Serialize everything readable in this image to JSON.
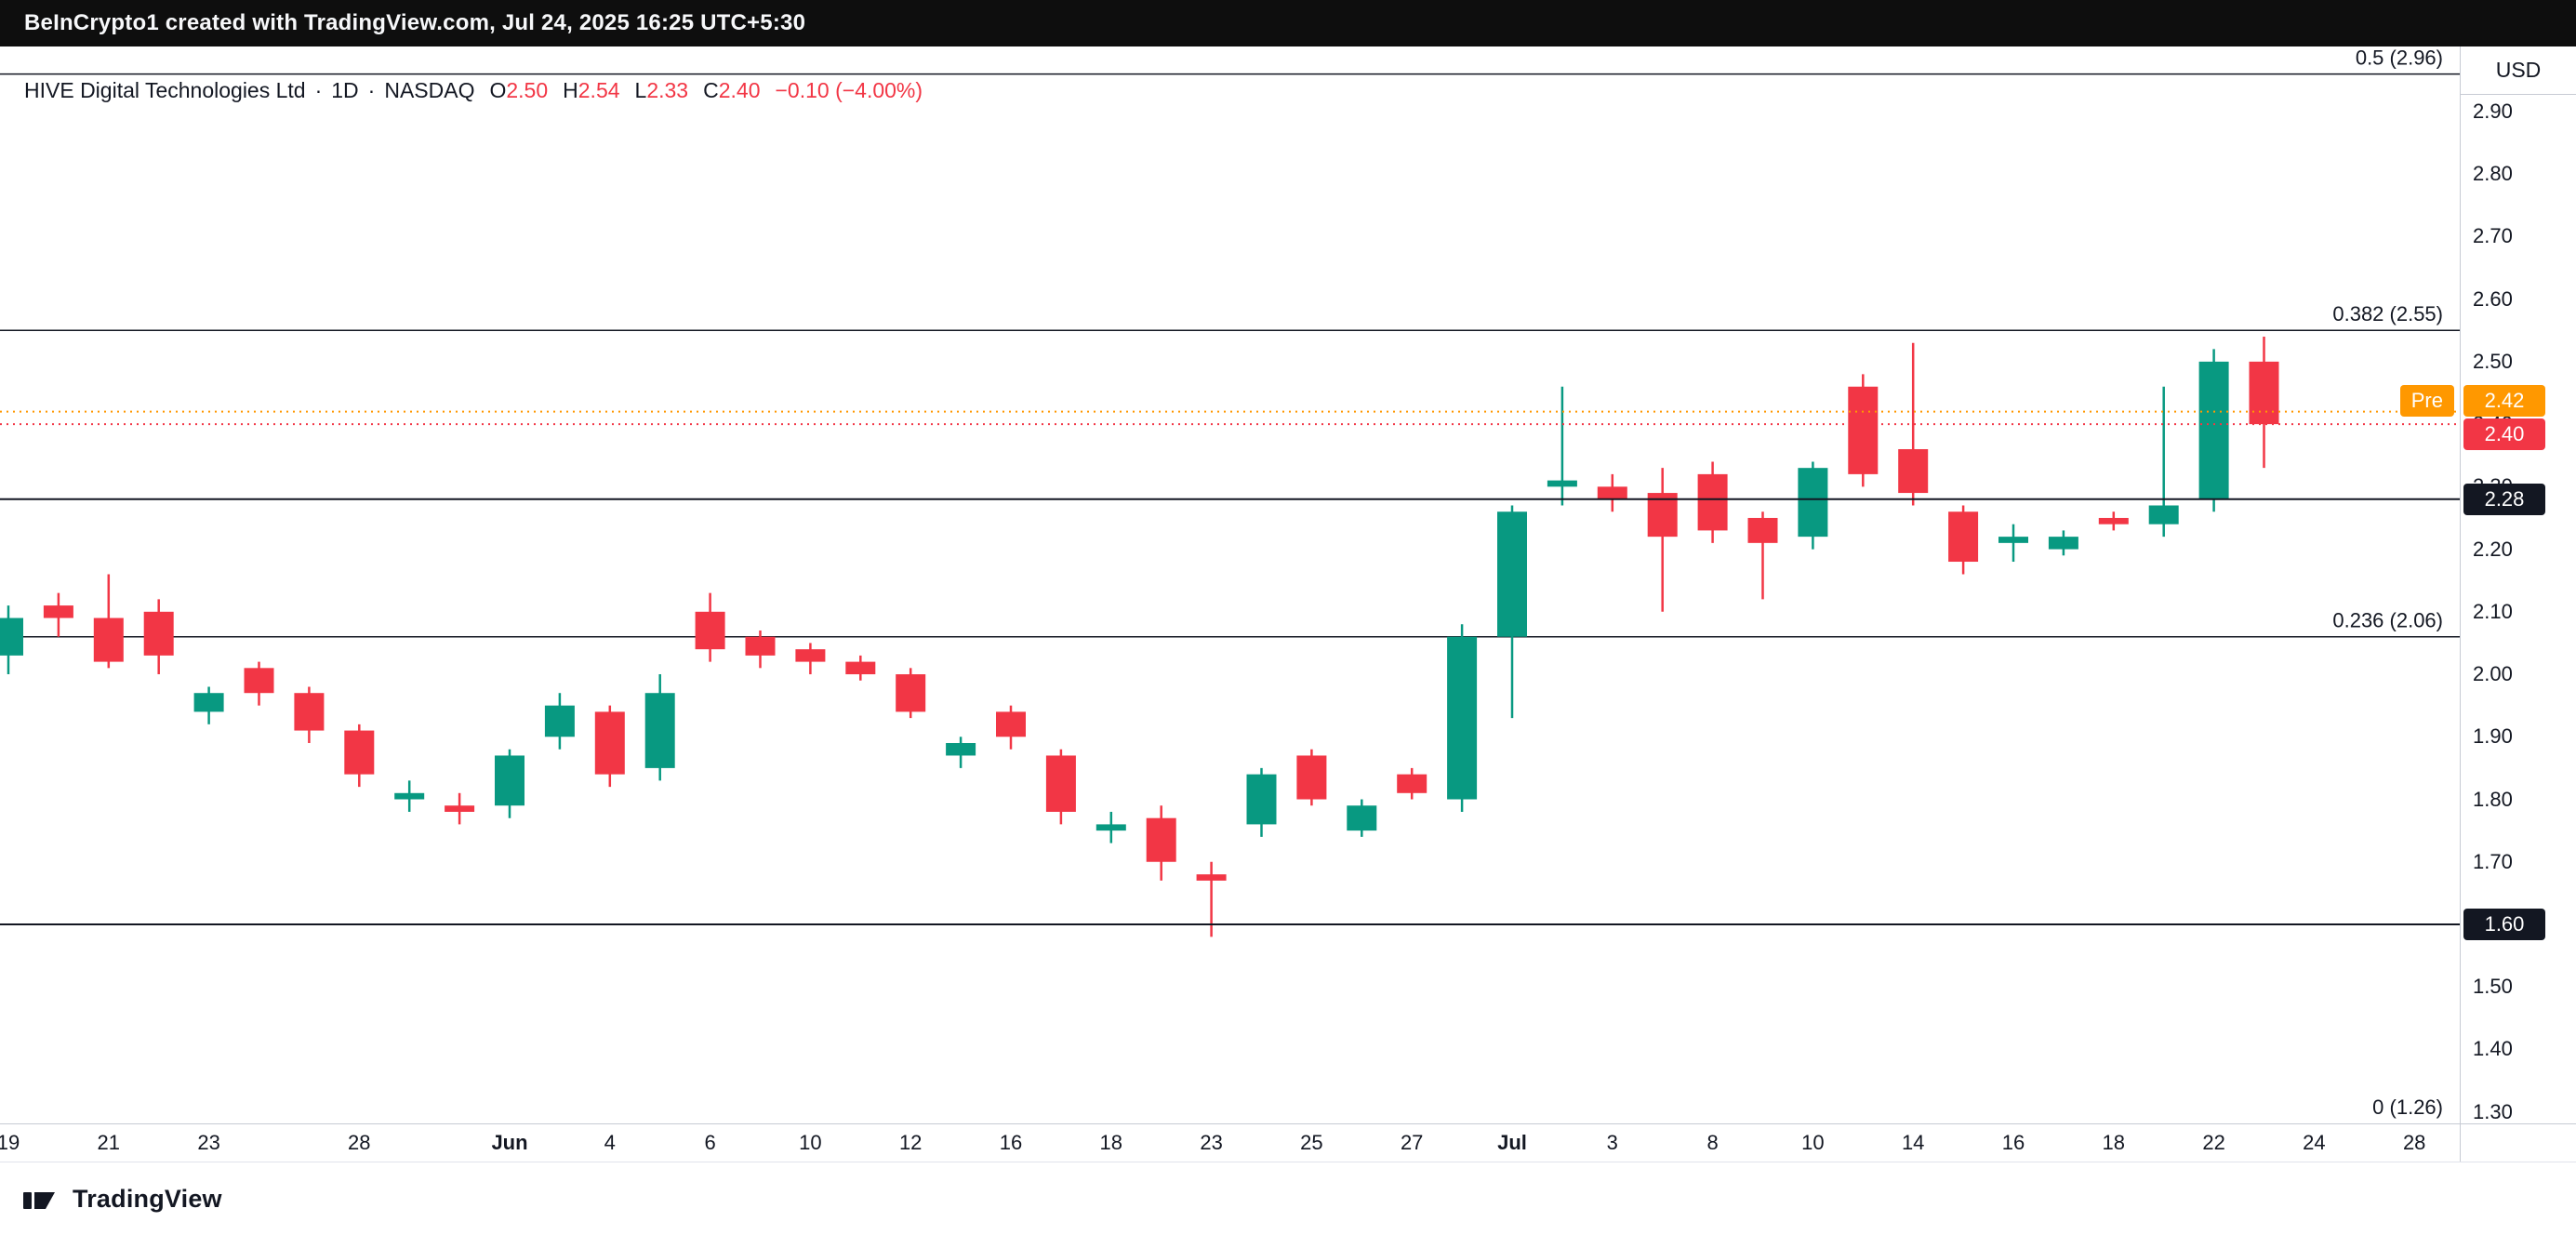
{
  "topbar": {
    "attribution": "BeInCrypto1 created with TradingView.com, Jul 24, 2025 16:25 UTC+5:30"
  },
  "legend": {
    "symbol": "HIVE Digital Technologies Ltd",
    "separator": "·",
    "interval": "1D",
    "exchange": "NASDAQ",
    "ohlc": [
      {
        "label": "O",
        "value": "2.50"
      },
      {
        "label": "H",
        "value": "2.54"
      },
      {
        "label": "L",
        "value": "2.33"
      },
      {
        "label": "C",
        "value": "2.40"
      }
    ],
    "change": "−0.10 (−4.00%)"
  },
  "price_axis": {
    "currency": "USD",
    "ticks": [
      "2.90",
      "2.80",
      "2.70",
      "2.60",
      "2.50",
      "2.40",
      "2.30",
      "2.20",
      "2.10",
      "2.00",
      "1.90",
      "1.80",
      "1.70",
      "1.60",
      "1.50",
      "1.40",
      "1.30"
    ]
  },
  "footer": {
    "brand": "TradingView"
  },
  "chart_data": {
    "type": "candlestick",
    "symbol": "HIVE Digital Technologies Ltd",
    "interval": "1D",
    "exchange": "NASDAQ",
    "currency": "USD",
    "colors": {
      "up": "#089981",
      "down": "#f23645",
      "line": "#131722"
    },
    "price_top": 3.004,
    "price_bottom": 1.2817,
    "fib_levels": [
      {
        "label": "0.5 (2.96)",
        "price": 2.96
      },
      {
        "label": "0.382 (2.55)",
        "price": 2.55
      },
      {
        "label": "0.236 (2.06)",
        "price": 2.06
      },
      {
        "label": "0 (1.26)",
        "price": 1.26
      }
    ],
    "horizontal_lines": [
      {
        "price": 2.28,
        "label": "2.28",
        "color": "#131722"
      },
      {
        "price": 1.6,
        "label": "1.60",
        "color": "#131722"
      }
    ],
    "price_markers": [
      {
        "name": "pre-market",
        "prefix": "Pre",
        "label": "2.42",
        "price": 2.42,
        "color": "#ff9800",
        "style": "dotted"
      },
      {
        "name": "last-price",
        "label": "2.40",
        "price": 2.4,
        "color": "#f23645",
        "style": "dotted"
      }
    ],
    "x_labels": [
      {
        "text": "19",
        "i": 0
      },
      {
        "text": "21",
        "i": 2
      },
      {
        "text": "23",
        "i": 4
      },
      {
        "text": "28",
        "i": 7
      },
      {
        "text": "Jun",
        "i": 10,
        "bold": true
      },
      {
        "text": "4",
        "i": 12
      },
      {
        "text": "6",
        "i": 14
      },
      {
        "text": "10",
        "i": 16
      },
      {
        "text": "12",
        "i": 18
      },
      {
        "text": "16",
        "i": 20
      },
      {
        "text": "18",
        "i": 22
      },
      {
        "text": "23",
        "i": 24
      },
      {
        "text": "25",
        "i": 26
      },
      {
        "text": "27",
        "i": 28
      },
      {
        "text": "Jul",
        "i": 30,
        "bold": true
      },
      {
        "text": "3",
        "i": 32
      },
      {
        "text": "8",
        "i": 34
      },
      {
        "text": "10",
        "i": 36
      },
      {
        "text": "14",
        "i": 38
      },
      {
        "text": "16",
        "i": 40
      },
      {
        "text": "18",
        "i": 42
      },
      {
        "text": "22",
        "i": 44
      },
      {
        "text": "24",
        "i": 46
      },
      {
        "text": "28",
        "i": 48
      }
    ],
    "candles": [
      {
        "t": "May 19",
        "o": 2.03,
        "h": 2.11,
        "l": 2.0,
        "c": 2.09
      },
      {
        "t": "May 20",
        "o": 2.11,
        "h": 2.13,
        "l": 2.06,
        "c": 2.09
      },
      {
        "t": "May 21",
        "o": 2.09,
        "h": 2.16,
        "l": 2.01,
        "c": 2.02
      },
      {
        "t": "May 22",
        "o": 2.1,
        "h": 2.12,
        "l": 2.0,
        "c": 2.03
      },
      {
        "t": "May 23",
        "o": 1.94,
        "h": 1.98,
        "l": 1.92,
        "c": 1.97
      },
      {
        "t": "May 26",
        "o": 2.01,
        "h": 2.02,
        "l": 1.95,
        "c": 1.97
      },
      {
        "t": "May 27",
        "o": 1.97,
        "h": 1.98,
        "l": 1.89,
        "c": 1.91
      },
      {
        "t": "May 28",
        "o": 1.91,
        "h": 1.92,
        "l": 1.82,
        "c": 1.84
      },
      {
        "t": "May 29",
        "o": 1.8,
        "h": 1.83,
        "l": 1.78,
        "c": 1.81
      },
      {
        "t": "May 30",
        "o": 1.79,
        "h": 1.81,
        "l": 1.76,
        "c": 1.78
      },
      {
        "t": "Jun 2",
        "o": 1.79,
        "h": 1.88,
        "l": 1.77,
        "c": 1.87
      },
      {
        "t": "Jun 3",
        "o": 1.9,
        "h": 1.97,
        "l": 1.88,
        "c": 1.95
      },
      {
        "t": "Jun 4",
        "o": 1.94,
        "h": 1.95,
        "l": 1.82,
        "c": 1.84
      },
      {
        "t": "Jun 5",
        "o": 1.85,
        "h": 2.0,
        "l": 1.83,
        "c": 1.97
      },
      {
        "t": "Jun 6",
        "o": 2.1,
        "h": 2.13,
        "l": 2.02,
        "c": 2.04
      },
      {
        "t": "Jun 9",
        "o": 2.06,
        "h": 2.07,
        "l": 2.01,
        "c": 2.03
      },
      {
        "t": "Jun 10",
        "o": 2.04,
        "h": 2.05,
        "l": 2.0,
        "c": 2.02
      },
      {
        "t": "Jun 11",
        "o": 2.02,
        "h": 2.03,
        "l": 1.99,
        "c": 2.0
      },
      {
        "t": "Jun 12",
        "o": 2.0,
        "h": 2.01,
        "l": 1.93,
        "c": 1.94
      },
      {
        "t": "Jun 13",
        "o": 1.87,
        "h": 1.9,
        "l": 1.85,
        "c": 1.89
      },
      {
        "t": "Jun 16",
        "o": 1.94,
        "h": 1.95,
        "l": 1.88,
        "c": 1.9
      },
      {
        "t": "Jun 17",
        "o": 1.87,
        "h": 1.88,
        "l": 1.76,
        "c": 1.78
      },
      {
        "t": "Jun 18",
        "o": 1.75,
        "h": 1.78,
        "l": 1.73,
        "c": 1.76
      },
      {
        "t": "Jun 20",
        "o": 1.77,
        "h": 1.79,
        "l": 1.67,
        "c": 1.7
      },
      {
        "t": "Jun 23",
        "o": 1.68,
        "h": 1.7,
        "l": 1.58,
        "c": 1.67
      },
      {
        "t": "Jun 24",
        "o": 1.76,
        "h": 1.85,
        "l": 1.74,
        "c": 1.84
      },
      {
        "t": "Jun 25",
        "o": 1.87,
        "h": 1.88,
        "l": 1.79,
        "c": 1.8
      },
      {
        "t": "Jun 26",
        "o": 1.75,
        "h": 1.8,
        "l": 1.74,
        "c": 1.79
      },
      {
        "t": "Jun 27",
        "o": 1.84,
        "h": 1.85,
        "l": 1.8,
        "c": 1.81
      },
      {
        "t": "Jun 30",
        "o": 1.8,
        "h": 2.08,
        "l": 1.78,
        "c": 2.06
      },
      {
        "t": "Jul 1",
        "o": 2.06,
        "h": 2.27,
        "l": 1.93,
        "c": 2.26
      },
      {
        "t": "Jul 2",
        "o": 2.3,
        "h": 2.46,
        "l": 2.27,
        "c": 2.31
      },
      {
        "t": "Jul 3",
        "o": 2.3,
        "h": 2.32,
        "l": 2.26,
        "c": 2.28
      },
      {
        "t": "Jul 7",
        "o": 2.29,
        "h": 2.33,
        "l": 2.1,
        "c": 2.22
      },
      {
        "t": "Jul 8",
        "o": 2.32,
        "h": 2.34,
        "l": 2.21,
        "c": 2.23
      },
      {
        "t": "Jul 9",
        "o": 2.25,
        "h": 2.26,
        "l": 2.12,
        "c": 2.21
      },
      {
        "t": "Jul 10",
        "o": 2.22,
        "h": 2.34,
        "l": 2.2,
        "c": 2.33
      },
      {
        "t": "Jul 11",
        "o": 2.46,
        "h": 2.48,
        "l": 2.3,
        "c": 2.32
      },
      {
        "t": "Jul 14",
        "o": 2.36,
        "h": 2.53,
        "l": 2.27,
        "c": 2.29
      },
      {
        "t": "Jul 15",
        "o": 2.26,
        "h": 2.27,
        "l": 2.16,
        "c": 2.18
      },
      {
        "t": "Jul 16",
        "o": 2.21,
        "h": 2.24,
        "l": 2.18,
        "c": 2.22
      },
      {
        "t": "Jul 17",
        "o": 2.2,
        "h": 2.23,
        "l": 2.19,
        "c": 2.22
      },
      {
        "t": "Jul 18",
        "o": 2.25,
        "h": 2.26,
        "l": 2.23,
        "c": 2.24
      },
      {
        "t": "Jul 21",
        "o": 2.24,
        "h": 2.46,
        "l": 2.22,
        "c": 2.27
      },
      {
        "t": "Jul 22",
        "o": 2.28,
        "h": 2.52,
        "l": 2.26,
        "c": 2.5
      },
      {
        "t": "Jul 23",
        "o": 2.5,
        "h": 2.54,
        "l": 2.33,
        "c": 2.4
      }
    ]
  }
}
